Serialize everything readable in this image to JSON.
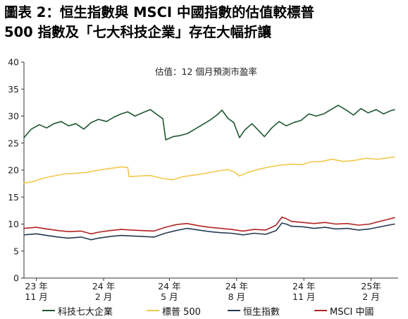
{
  "title_lines": [
    "圖表 2：恒生指數與 MSCI 中國指數的估值較標普",
    "500 指數及「七大科技企業」存在大幅折讓"
  ],
  "chart_data": {
    "type": "line",
    "annotation": "估值：12 個月預測市盈率",
    "ylim": [
      0,
      40
    ],
    "y_ticks": [
      0,
      5,
      10,
      15,
      20,
      25,
      30,
      35,
      40
    ],
    "x_ticks": [
      {
        "year": "23 年",
        "month": "11 月",
        "date": "2023-11"
      },
      {
        "year": "24 年",
        "month": "2 月",
        "date": "2024-02"
      },
      {
        "year": "24 年",
        "month": "5 月",
        "date": "2024-05"
      },
      {
        "year": "24 年",
        "month": "8 月",
        "date": "2024-08"
      },
      {
        "year": "24 年",
        "month": "11 月",
        "date": "2024-11"
      },
      {
        "year": "25年",
        "month": "2 月",
        "date": "2025-02"
      }
    ],
    "xlim": [
      "2023-10-15",
      "2025-03-10"
    ],
    "series": [
      {
        "name": "科技七大企業",
        "color": "#1e5631",
        "points": [
          [
            "2023-10-15",
            26.0
          ],
          [
            "2023-10-25",
            27.6
          ],
          [
            "2023-11-05",
            28.4
          ],
          [
            "2023-11-15",
            27.8
          ],
          [
            "2023-11-25",
            28.6
          ],
          [
            "2023-12-05",
            29.0
          ],
          [
            "2023-12-15",
            28.2
          ],
          [
            "2023-12-25",
            28.6
          ],
          [
            "2024-01-05",
            27.6
          ],
          [
            "2024-01-15",
            28.8
          ],
          [
            "2024-01-25",
            29.4
          ],
          [
            "2024-02-05",
            29.0
          ],
          [
            "2024-02-15",
            29.8
          ],
          [
            "2024-02-25",
            30.4
          ],
          [
            "2024-03-05",
            30.8
          ],
          [
            "2024-03-15",
            30.0
          ],
          [
            "2024-03-25",
            30.6
          ],
          [
            "2024-04-05",
            31.2
          ],
          [
            "2024-04-15",
            30.2
          ],
          [
            "2024-04-22",
            29.5
          ],
          [
            "2024-04-26",
            25.6
          ],
          [
            "2024-05-06",
            26.2
          ],
          [
            "2024-05-16",
            26.4
          ],
          [
            "2024-05-26",
            26.8
          ],
          [
            "2024-06-05",
            27.6
          ],
          [
            "2024-06-15",
            28.4
          ],
          [
            "2024-06-25",
            29.2
          ],
          [
            "2024-07-05",
            30.2
          ],
          [
            "2024-07-12",
            31.1
          ],
          [
            "2024-07-20",
            29.6
          ],
          [
            "2024-07-28",
            28.8
          ],
          [
            "2024-08-05",
            26.0
          ],
          [
            "2024-08-12",
            27.4
          ],
          [
            "2024-08-22",
            28.6
          ],
          [
            "2024-09-01",
            27.2
          ],
          [
            "2024-09-08",
            26.2
          ],
          [
            "2024-09-18",
            27.8
          ],
          [
            "2024-09-28",
            29.0
          ],
          [
            "2024-10-08",
            28.2
          ],
          [
            "2024-10-18",
            28.8
          ],
          [
            "2024-10-28",
            29.2
          ],
          [
            "2024-11-08",
            30.4
          ],
          [
            "2024-11-18",
            30.0
          ],
          [
            "2024-11-28",
            30.4
          ],
          [
            "2024-12-08",
            31.2
          ],
          [
            "2024-12-18",
            32.0
          ],
          [
            "2024-12-28",
            31.2
          ],
          [
            "2025-01-08",
            30.2
          ],
          [
            "2025-01-18",
            31.4
          ],
          [
            "2025-01-28",
            30.6
          ],
          [
            "2025-02-08",
            31.2
          ],
          [
            "2025-02-18",
            30.4
          ],
          [
            "2025-02-28",
            31.0
          ],
          [
            "2025-03-05",
            31.2
          ]
        ]
      },
      {
        "name": "標普 500",
        "color": "#f2c94c",
        "points": [
          [
            "2023-10-15",
            17.6
          ],
          [
            "2023-10-28",
            17.9
          ],
          [
            "2023-11-10",
            18.5
          ],
          [
            "2023-11-25",
            18.9
          ],
          [
            "2023-12-10",
            19.3
          ],
          [
            "2023-12-25",
            19.4
          ],
          [
            "2024-01-10",
            19.6
          ],
          [
            "2024-01-25",
            20.0
          ],
          [
            "2024-02-10",
            20.3
          ],
          [
            "2024-02-25",
            20.6
          ],
          [
            "2024-03-05",
            20.5
          ],
          [
            "2024-03-07",
            18.8
          ],
          [
            "2024-03-20",
            18.9
          ],
          [
            "2024-04-05",
            19.0
          ],
          [
            "2024-04-20",
            18.5
          ],
          [
            "2024-05-05",
            18.2
          ],
          [
            "2024-05-20",
            18.8
          ],
          [
            "2024-06-05",
            19.1
          ],
          [
            "2024-06-20",
            19.4
          ],
          [
            "2024-07-05",
            19.8
          ],
          [
            "2024-07-20",
            20.1
          ],
          [
            "2024-07-30",
            19.6
          ],
          [
            "2024-08-05",
            18.9
          ],
          [
            "2024-08-15",
            19.5
          ],
          [
            "2024-08-30",
            20.1
          ],
          [
            "2024-09-15",
            20.6
          ],
          [
            "2024-09-30",
            20.9
          ],
          [
            "2024-10-15",
            21.1
          ],
          [
            "2024-10-30",
            21.0
          ],
          [
            "2024-11-10",
            21.5
          ],
          [
            "2024-11-25",
            21.6
          ],
          [
            "2024-12-10",
            22.0
          ],
          [
            "2024-12-25",
            21.6
          ],
          [
            "2025-01-10",
            21.8
          ],
          [
            "2025-01-25",
            22.2
          ],
          [
            "2025-02-10",
            22.0
          ],
          [
            "2025-02-25",
            22.3
          ],
          [
            "2025-03-05",
            22.4
          ]
        ]
      },
      {
        "name": "恒生指數",
        "color": "#243b53",
        "points": [
          [
            "2023-10-15",
            8.0
          ],
          [
            "2023-11-01",
            8.2
          ],
          [
            "2023-11-15",
            7.9
          ],
          [
            "2023-12-01",
            7.6
          ],
          [
            "2023-12-15",
            7.4
          ],
          [
            "2024-01-01",
            7.6
          ],
          [
            "2024-01-15",
            7.1
          ],
          [
            "2024-01-25",
            7.4
          ],
          [
            "2024-02-10",
            7.7
          ],
          [
            "2024-02-25",
            7.9
          ],
          [
            "2024-03-10",
            7.8
          ],
          [
            "2024-03-25",
            7.7
          ],
          [
            "2024-04-10",
            7.6
          ],
          [
            "2024-04-25",
            8.3
          ],
          [
            "2024-05-10",
            8.8
          ],
          [
            "2024-05-25",
            9.2
          ],
          [
            "2024-06-10",
            8.9
          ],
          [
            "2024-06-25",
            8.6
          ],
          [
            "2024-07-10",
            8.4
          ],
          [
            "2024-07-25",
            8.3
          ],
          [
            "2024-08-10",
            8.0
          ],
          [
            "2024-08-25",
            8.3
          ],
          [
            "2024-09-10",
            8.1
          ],
          [
            "2024-09-24",
            8.8
          ],
          [
            "2024-10-02",
            10.2
          ],
          [
            "2024-10-08",
            10.0
          ],
          [
            "2024-10-15",
            9.6
          ],
          [
            "2024-10-30",
            9.5
          ],
          [
            "2024-11-15",
            9.2
          ],
          [
            "2024-11-30",
            9.4
          ],
          [
            "2024-12-15",
            9.1
          ],
          [
            "2024-12-30",
            9.2
          ],
          [
            "2025-01-15",
            8.9
          ],
          [
            "2025-01-30",
            9.1
          ],
          [
            "2025-02-10",
            9.4
          ],
          [
            "2025-02-25",
            9.8
          ],
          [
            "2025-03-05",
            10.0
          ]
        ]
      },
      {
        "name": "MSCI 中國",
        "color": "#b22222",
        "points": [
          [
            "2023-10-15",
            9.2
          ],
          [
            "2023-11-01",
            9.4
          ],
          [
            "2023-11-15",
            9.1
          ],
          [
            "2023-12-01",
            8.8
          ],
          [
            "2023-12-15",
            8.6
          ],
          [
            "2024-01-01",
            8.7
          ],
          [
            "2024-01-15",
            8.2
          ],
          [
            "2024-01-25",
            8.5
          ],
          [
            "2024-02-10",
            8.8
          ],
          [
            "2024-02-25",
            9.0
          ],
          [
            "2024-03-10",
            8.9
          ],
          [
            "2024-03-25",
            8.8
          ],
          [
            "2024-04-10",
            8.7
          ],
          [
            "2024-04-25",
            9.4
          ],
          [
            "2024-05-10",
            9.9
          ],
          [
            "2024-05-25",
            10.1
          ],
          [
            "2024-06-10",
            9.7
          ],
          [
            "2024-06-25",
            9.4
          ],
          [
            "2024-07-10",
            9.2
          ],
          [
            "2024-07-25",
            9.0
          ],
          [
            "2024-08-10",
            8.7
          ],
          [
            "2024-08-25",
            9.0
          ],
          [
            "2024-09-10",
            8.9
          ],
          [
            "2024-09-24",
            9.8
          ],
          [
            "2024-10-02",
            11.3
          ],
          [
            "2024-10-08",
            11.0
          ],
          [
            "2024-10-15",
            10.5
          ],
          [
            "2024-10-30",
            10.3
          ],
          [
            "2024-11-15",
            10.1
          ],
          [
            "2024-11-30",
            10.3
          ],
          [
            "2024-12-15",
            10.0
          ],
          [
            "2024-12-30",
            10.1
          ],
          [
            "2025-01-15",
            9.8
          ],
          [
            "2025-01-30",
            10.0
          ],
          [
            "2025-02-10",
            10.4
          ],
          [
            "2025-02-25",
            10.9
          ],
          [
            "2025-03-05",
            11.2
          ]
        ]
      }
    ]
  }
}
